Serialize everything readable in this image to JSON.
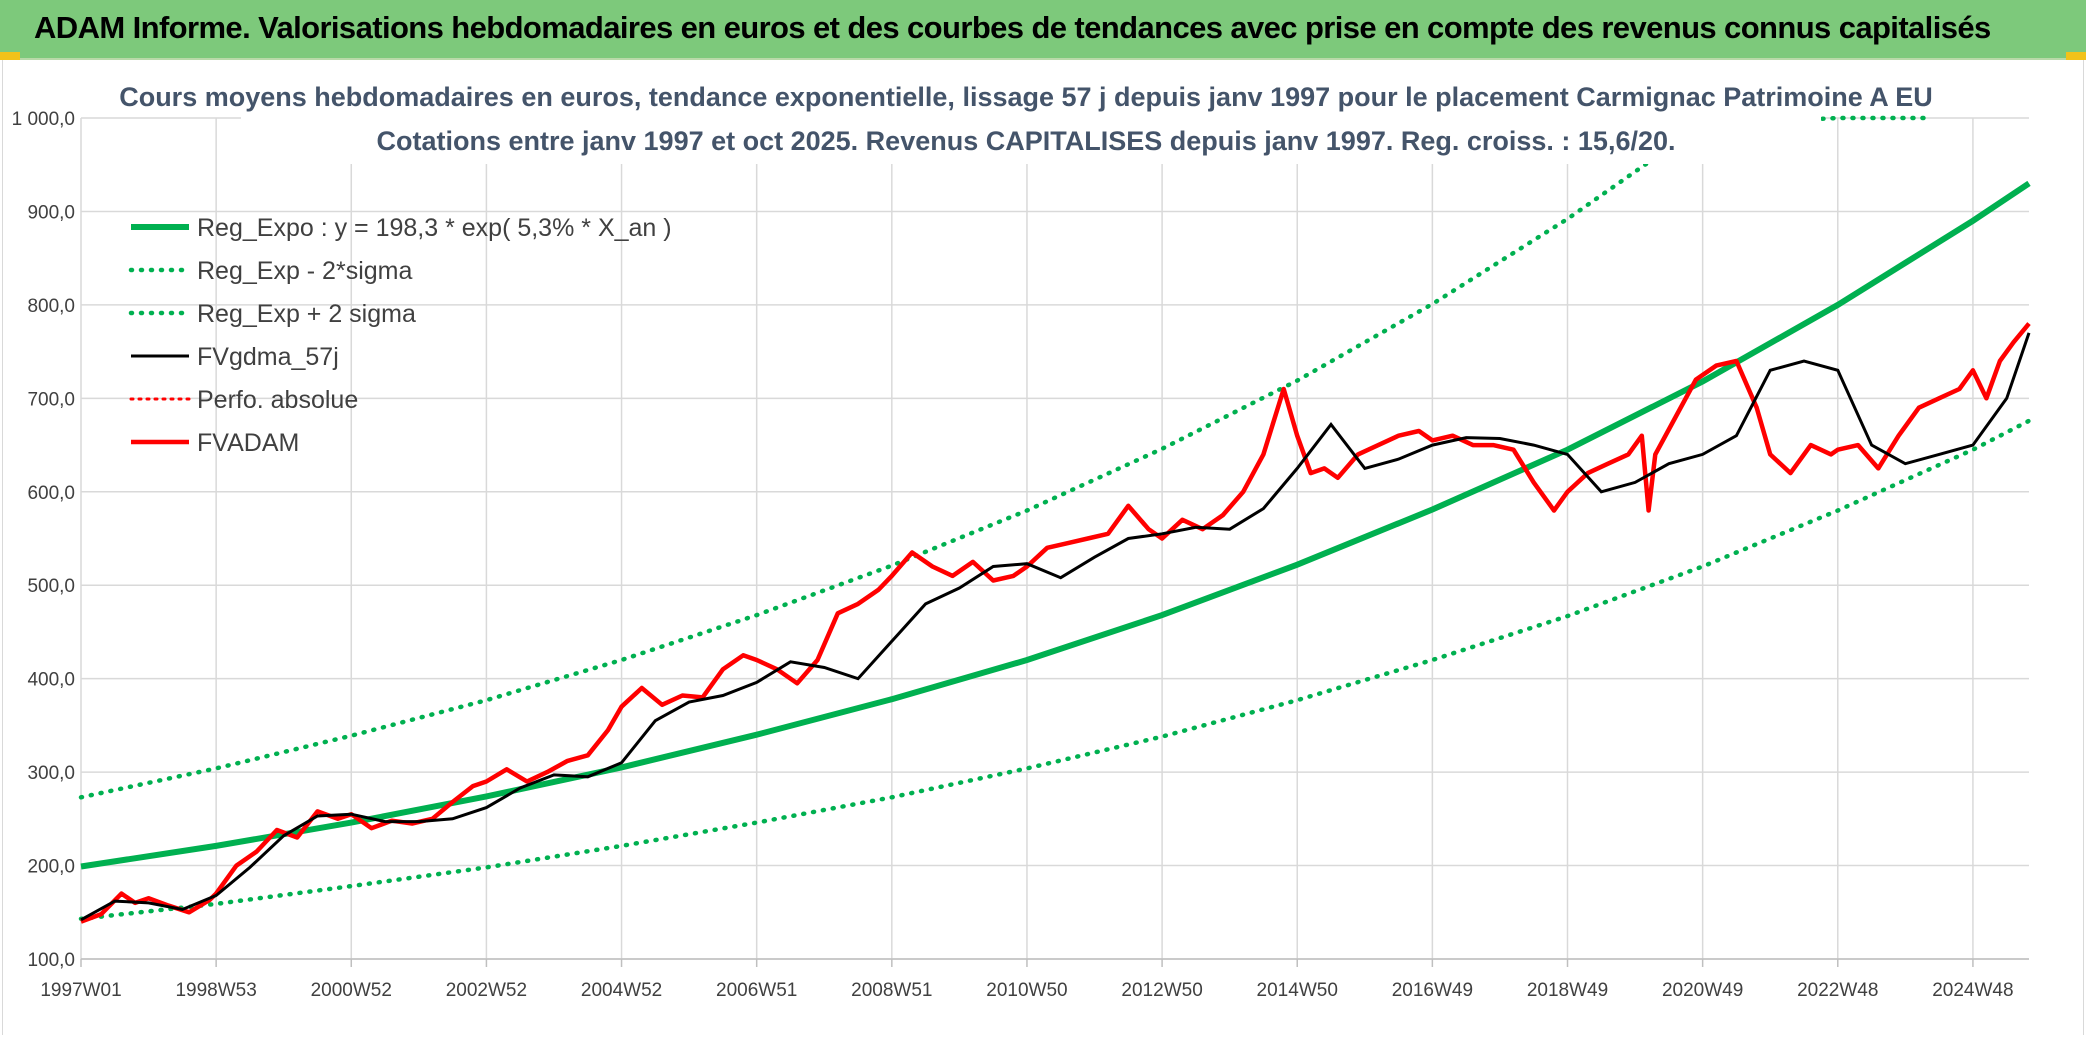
{
  "header": {
    "title": "ADAM Informe. Valorisations hebdomadaires en euros et des courbes de tendances avec prise en compte des revenus connus capitalisés"
  },
  "colors": {
    "banner": "#7dc97b",
    "trend": "#00b050",
    "price": "#ff0000",
    "smooth": "#000000",
    "grid": "#d9d9d9"
  },
  "chart_data": {
    "type": "line",
    "title_line1": "Cours moyens hebdomadaires en euros, tendance exponentielle, lissage 57 j depuis janv 1997 pour le placement Carmignac Patrimoine A EU",
    "title_line2": "Cotations entre janv 1997 et oct 2025. Revenus CAPITALISES depuis janv 1997. Reg. croiss. : 15,6/20.",
    "ylim": [
      100,
      1000
    ],
    "y_ticks": [
      "100,0",
      "200,0",
      "300,0",
      "400,0",
      "500,0",
      "600,0",
      "700,0",
      "800,0",
      "900,0",
      "1 000,0"
    ],
    "x_range": [
      1997.0,
      2025.83
    ],
    "x_ticks": [
      {
        "label": "1997W01",
        "x": 1997.0
      },
      {
        "label": "1998W53",
        "x": 1999.0
      },
      {
        "label": "2000W52",
        "x": 2001.0
      },
      {
        "label": "2002W52",
        "x": 2003.0
      },
      {
        "label": "2004W52",
        "x": 2005.0
      },
      {
        "label": "2006W51",
        "x": 2007.0
      },
      {
        "label": "2008W51",
        "x": 2009.0
      },
      {
        "label": "2010W50",
        "x": 2011.0
      },
      {
        "label": "2012W50",
        "x": 2013.0
      },
      {
        "label": "2014W50",
        "x": 2015.0
      },
      {
        "label": "2016W49",
        "x": 2017.0
      },
      {
        "label": "2018W49",
        "x": 2019.0
      },
      {
        "label": "2020W49",
        "x": 2021.0
      },
      {
        "label": "2022W48",
        "x": 2023.0
      },
      {
        "label": "2024W48",
        "x": 2025.0
      }
    ],
    "regression": {
      "a": 198.3,
      "rate_pct": 5.3
    },
    "series": [
      {
        "name": "Reg_Expo : y = 198,3 * exp( 5,3% *  X_an )",
        "style": "solid-green",
        "x": [
          1997.0,
          1999.0,
          2001.0,
          2003.0,
          2005.0,
          2007.0,
          2009.0,
          2011.0,
          2013.0,
          2015.0,
          2017.0,
          2019.0,
          2021.0,
          2023.0,
          2025.0,
          2025.83
        ],
        "y": [
          199,
          221,
          246,
          274,
          305,
          340,
          378,
          420,
          468,
          522,
          581,
          645,
          718,
          800,
          890,
          930
        ]
      },
      {
        "name": "Reg_Exp - 2*sigma",
        "style": "dotted-green",
        "x": [
          1997.0,
          1999.0,
          2001.0,
          2003.0,
          2005.0,
          2007.0,
          2009.0,
          2011.0,
          2013.0,
          2015.0,
          2017.0,
          2019.0,
          2021.0,
          2023.0,
          2025.0,
          2025.83
        ],
        "y": [
          143,
          159,
          178,
          198,
          221,
          246,
          273,
          304,
          338,
          377,
          420,
          467,
          520,
          580,
          645,
          676
        ]
      },
      {
        "name": "Reg_Exp + 2 sigma",
        "style": "dotted-green",
        "x": [
          1997.0,
          1999.0,
          2001.0,
          2003.0,
          2005.0,
          2007.0,
          2009.0,
          2011.0,
          2013.0,
          2015.0,
          2017.0,
          2019.0,
          2021.0,
          2023.0,
          2024.3
        ],
        "y": [
          273,
          304,
          339,
          377,
          420,
          468,
          521,
          580,
          646,
          719,
          801,
          892,
          993,
          1000,
          1000
        ]
      },
      {
        "name": "FVgdma_57j",
        "style": "solid-black",
        "x": [
          1997.0,
          1997.5,
          1998.0,
          1998.5,
          1999.0,
          1999.5,
          2000.0,
          2000.5,
          2001.0,
          2001.5,
          2002.0,
          2002.5,
          2003.0,
          2003.5,
          2004.0,
          2004.5,
          2005.0,
          2005.5,
          2006.0,
          2006.5,
          2007.0,
          2007.5,
          2008.0,
          2008.5,
          2009.0,
          2009.5,
          2010.0,
          2010.5,
          2011.0,
          2011.5,
          2012.0,
          2012.5,
          2013.0,
          2013.5,
          2014.0,
          2014.5,
          2015.0,
          2015.5,
          2016.0,
          2016.5,
          2017.0,
          2017.5,
          2018.0,
          2018.5,
          2019.0,
          2019.5,
          2020.0,
          2020.5,
          2021.0,
          2021.5,
          2022.0,
          2022.5,
          2023.0,
          2023.5,
          2024.0,
          2024.5,
          2025.0,
          2025.5,
          2025.83
        ],
        "y": [
          142,
          162,
          160,
          153,
          168,
          198,
          232,
          253,
          255,
          247,
          247,
          250,
          262,
          283,
          297,
          295,
          310,
          355,
          375,
          382,
          396,
          418,
          412,
          400,
          440,
          480,
          497,
          520,
          523,
          508,
          530,
          550,
          555,
          562,
          560,
          582,
          625,
          672,
          625,
          635,
          650,
          658,
          657,
          650,
          640,
          600,
          610,
          630,
          640,
          660,
          730,
          740,
          730,
          650,
          630,
          640,
          650,
          700,
          770
        ]
      },
      {
        "name": "Perfo. absolue",
        "style": "dotted-red",
        "x": [],
        "y": []
      },
      {
        "name": "FVADAM",
        "style": "solid-red",
        "x": [
          1997.0,
          1997.3,
          1997.6,
          1997.8,
          1998.0,
          1998.3,
          1998.6,
          1998.9,
          1999.0,
          1999.3,
          1999.6,
          1999.9,
          2000.2,
          2000.5,
          2000.8,
          2001.0,
          2001.3,
          2001.6,
          2001.9,
          2002.2,
          2002.5,
          2002.8,
          2003.0,
          2003.3,
          2003.6,
          2003.9,
          2004.2,
          2004.5,
          2004.8,
          2005.0,
          2005.3,
          2005.6,
          2005.9,
          2006.2,
          2006.5,
          2006.8,
          2007.0,
          2007.3,
          2007.6,
          2007.9,
          2008.2,
          2008.5,
          2008.8,
          2009.0,
          2009.3,
          2009.6,
          2009.9,
          2010.2,
          2010.5,
          2010.8,
          2011.0,
          2011.3,
          2011.6,
          2011.9,
          2012.2,
          2012.5,
          2012.8,
          2013.0,
          2013.3,
          2013.6,
          2013.9,
          2014.2,
          2014.5,
          2014.8,
          2015.0,
          2015.2,
          2015.4,
          2015.6,
          2015.9,
          2016.2,
          2016.5,
          2016.8,
          2017.0,
          2017.3,
          2017.6,
          2017.9,
          2018.2,
          2018.5,
          2018.8,
          2019.0,
          2019.3,
          2019.6,
          2019.9,
          2020.1,
          2020.2,
          2020.3,
          2020.6,
          2020.9,
          2021.2,
          2021.5,
          2021.8,
          2022.0,
          2022.3,
          2022.6,
          2022.9,
          2023.0,
          2023.3,
          2023.6,
          2023.9,
          2024.2,
          2024.5,
          2024.8,
          2025.0,
          2025.2,
          2025.4,
          2025.6,
          2025.83
        ],
        "y": [
          140,
          148,
          170,
          160,
          165,
          157,
          150,
          163,
          170,
          200,
          215,
          238,
          230,
          258,
          250,
          255,
          240,
          248,
          245,
          250,
          268,
          285,
          290,
          303,
          290,
          300,
          312,
          318,
          345,
          370,
          390,
          372,
          382,
          380,
          410,
          425,
          420,
          410,
          395,
          420,
          470,
          480,
          495,
          510,
          535,
          520,
          510,
          525,
          505,
          510,
          520,
          540,
          545,
          550,
          555,
          585,
          560,
          550,
          570,
          560,
          575,
          600,
          640,
          710,
          660,
          620,
          625,
          615,
          640,
          650,
          660,
          665,
          655,
          660,
          650,
          650,
          645,
          610,
          580,
          600,
          620,
          630,
          640,
          660,
          580,
          640,
          680,
          720,
          735,
          740,
          690,
          640,
          620,
          650,
          640,
          645,
          650,
          625,
          660,
          690,
          700,
          710,
          730,
          700,
          740,
          760,
          780
        ]
      }
    ],
    "legend_placement": "top-left",
    "grid": true
  }
}
